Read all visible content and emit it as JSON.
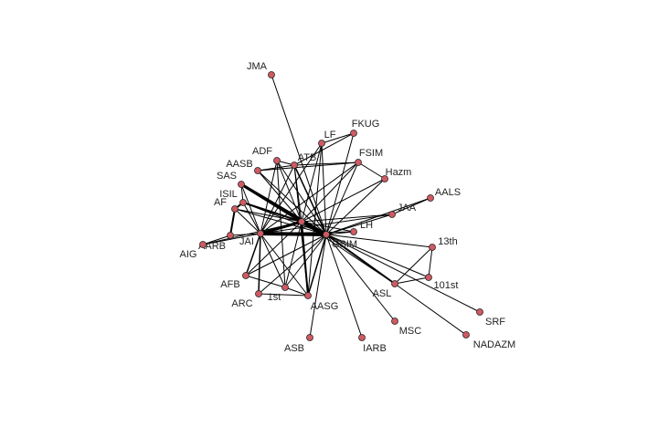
{
  "nodes": [
    {
      "label": "JMA"
    },
    {
      "label": "FKUG"
    },
    {
      "label": "LF"
    },
    {
      "label": "FSIM"
    },
    {
      "label": "ADF"
    },
    {
      "label": "ATB"
    },
    {
      "label": "AASB"
    },
    {
      "label": "Hazm"
    },
    {
      "label": "SAS"
    },
    {
      "label": "AALS"
    },
    {
      "label": "ISIL"
    },
    {
      "label": "AF"
    },
    {
      "label": "JAA"
    },
    {
      "label": "LH"
    },
    {
      "label": "JAI"
    },
    {
      "label": "GSIM"
    },
    {
      "label": "AARB"
    },
    {
      "label": "AIG"
    },
    {
      "label": "13th"
    },
    {
      "label": "101st"
    },
    {
      "label": "AFB"
    },
    {
      "label": "ASL"
    },
    {
      "label": "1st"
    },
    {
      "label": "ARC"
    },
    {
      "label": "AASG"
    },
    {
      "label": "MSC"
    },
    {
      "label": "SRF"
    },
    {
      "label": "ASB"
    },
    {
      "label": "IARB"
    },
    {
      "label": "NADAZM"
    }
  ]
}
